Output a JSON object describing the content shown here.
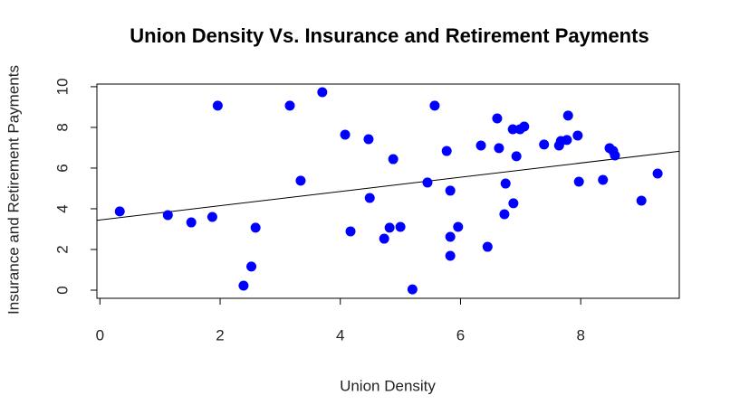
{
  "chart_data": {
    "type": "scatter",
    "title": "Union Density Vs. Insurance and Retirement Payments",
    "x_label": "Union Density",
    "y_label": "Insurance and Retirement Payments",
    "xlim": [
      -0.05,
      9.64
    ],
    "ylim": [
      -0.4,
      10.13
    ],
    "xticks": [
      0,
      2,
      4,
      6,
      8
    ],
    "yticks": [
      0,
      2,
      4,
      6,
      8,
      10
    ],
    "color": "#0000ff",
    "fit_line": {
      "intercept": 3.45,
      "slope": 0.35
    },
    "x": [
      0.33,
      1.13,
      1.52,
      1.87,
      1.96,
      2.39,
      2.52,
      2.59,
      3.16,
      3.34,
      3.7,
      4.08,
      4.17,
      4.47,
      4.49,
      4.73,
      4.82,
      4.88,
      5.0,
      5.2,
      5.45,
      5.57,
      5.77,
      5.83,
      5.83,
      5.83,
      5.96,
      6.34,
      6.45,
      6.61,
      6.64,
      6.73,
      6.75,
      6.87,
      6.88,
      6.93,
      6.99,
      7.06,
      7.39,
      7.64,
      7.67,
      7.77,
      7.79,
      7.95,
      7.97,
      8.37,
      8.48,
      8.54,
      8.57,
      9.01,
      9.28
    ],
    "y": [
      3.87,
      3.69,
      3.33,
      3.6,
      9.07,
      0.22,
      1.16,
      3.07,
      9.07,
      5.38,
      9.73,
      7.64,
      2.89,
      7.42,
      4.53,
      2.53,
      3.07,
      6.44,
      3.11,
      0.04,
      5.29,
      9.07,
      6.84,
      4.89,
      2.62,
      1.69,
      3.11,
      7.11,
      2.13,
      8.44,
      6.98,
      3.73,
      5.24,
      7.91,
      4.27,
      6.58,
      7.91,
      8.04,
      7.16,
      7.11,
      7.33,
      7.38,
      8.58,
      7.6,
      5.33,
      5.42,
      6.98,
      6.84,
      6.62,
      4.4,
      5.73
    ]
  }
}
